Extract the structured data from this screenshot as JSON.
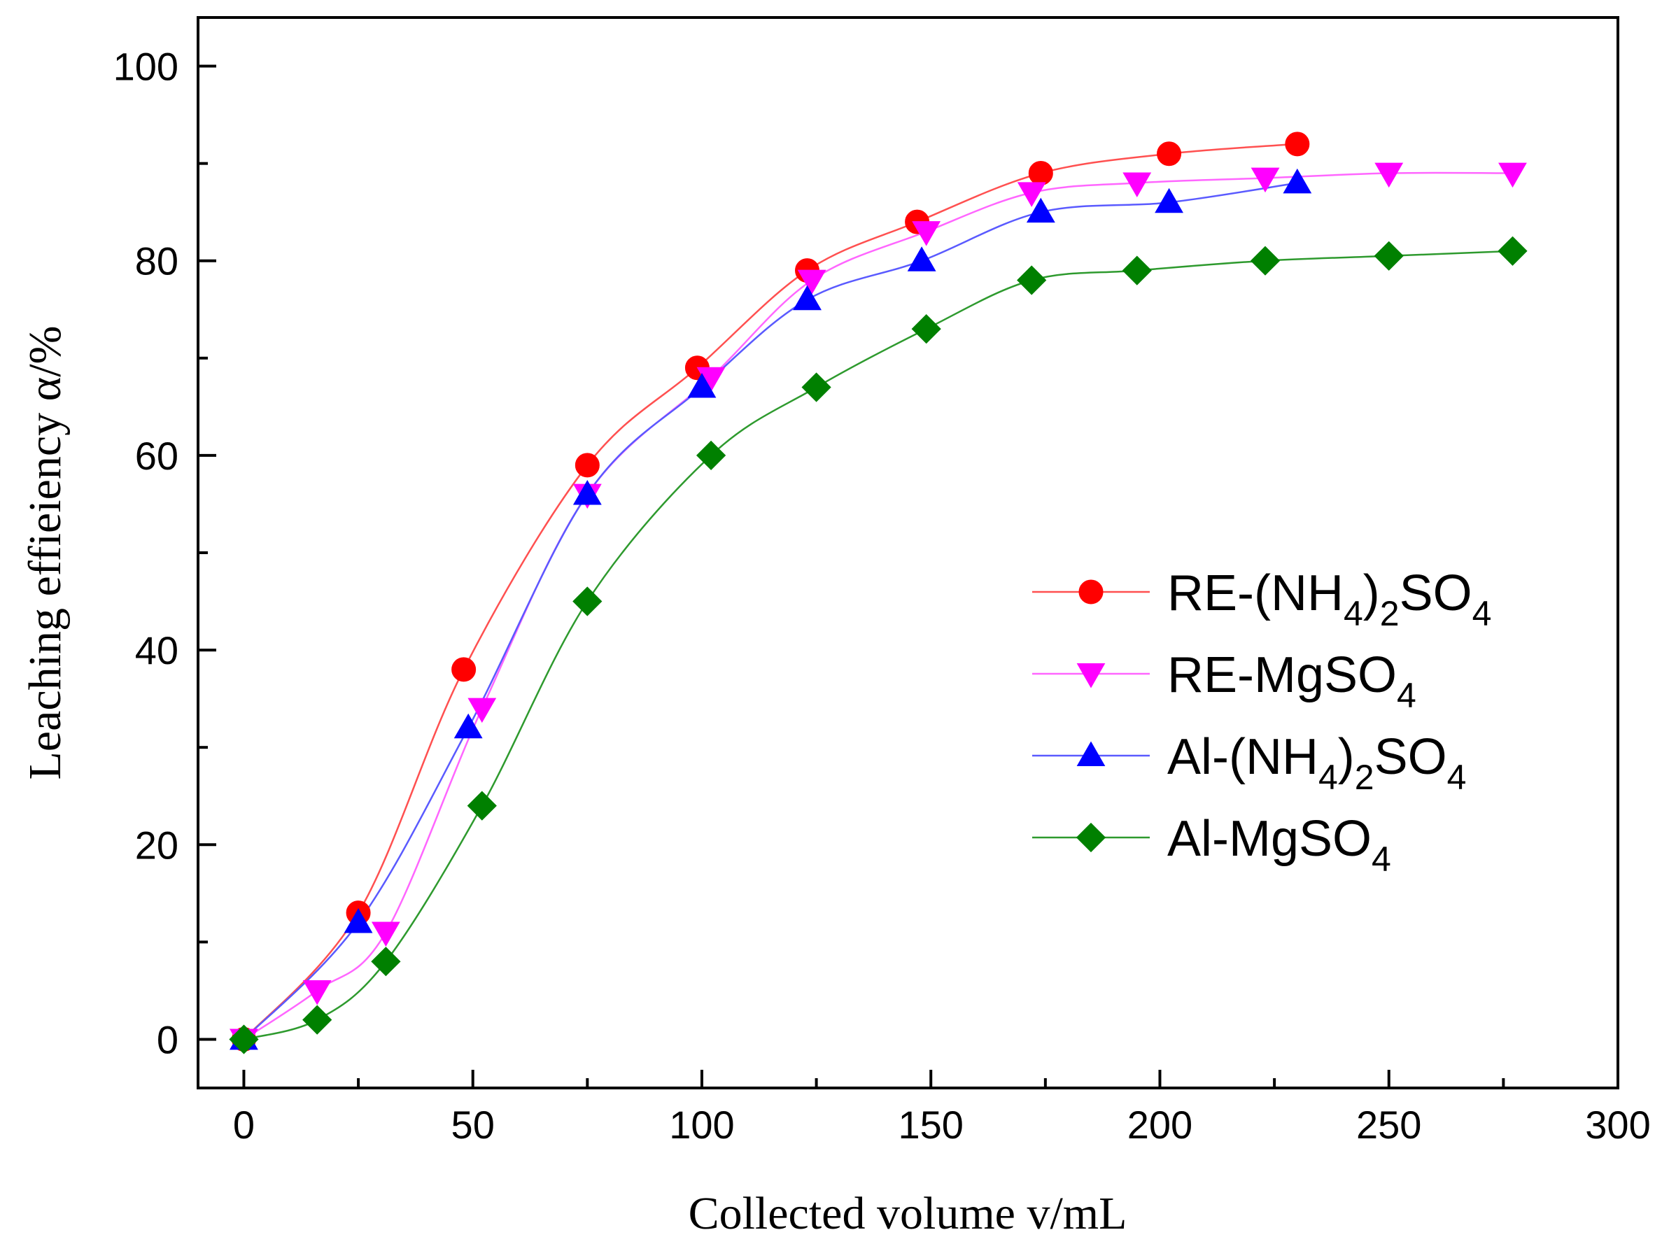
{
  "chart_data": {
    "type": "line",
    "title": "",
    "xlabel": "Collected volume v/mL",
    "ylabel": "Leaching effieiency α/%",
    "xlim": [
      -10,
      300
    ],
    "ylim": [
      -5,
      105
    ],
    "xticks": [
      0,
      50,
      100,
      150,
      200,
      250,
      300
    ],
    "yticks": [
      0,
      20,
      40,
      60,
      80,
      100
    ],
    "grid": false,
    "legend_position": "center-right",
    "series": [
      {
        "name": "RE-(NH4)2SO4",
        "label_parts": [
          [
            "RE-(NH",
            ""
          ],
          [
            "4",
            "sub"
          ],
          [
            ")",
            ""
          ],
          [
            "2",
            "sub"
          ],
          [
            "SO",
            ""
          ],
          [
            "4",
            "sub"
          ]
        ],
        "color": "#ff0000",
        "line_color": "#ff5050",
        "marker": "circle",
        "x": [
          0,
          25,
          48,
          75,
          99,
          123,
          147,
          174,
          202,
          230
        ],
        "y": [
          0,
          13,
          38,
          59,
          69,
          79,
          84,
          89,
          91,
          92
        ]
      },
      {
        "name": "RE-MgSO4",
        "label_parts": [
          [
            "RE-MgSO",
            ""
          ],
          [
            "4",
            "sub"
          ]
        ],
        "color": "#ff00ff",
        "line_color": "#ff66ff",
        "marker": "triangle-down",
        "x": [
          0,
          16,
          31,
          52,
          75,
          102,
          124,
          149,
          172,
          195,
          223,
          250,
          277
        ],
        "y": [
          0,
          5,
          11,
          34,
          56,
          68,
          78,
          83,
          87,
          88,
          88.5,
          89,
          89
        ]
      },
      {
        "name": "Al-(NH4)2SO4",
        "label_parts": [
          [
            "Al-(NH",
            ""
          ],
          [
            "4",
            "sub"
          ],
          [
            ")",
            ""
          ],
          [
            "2",
            "sub"
          ],
          [
            "SO",
            ""
          ],
          [
            "4",
            "sub"
          ]
        ],
        "color": "#0000ff",
        "line_color": "#5a5aff",
        "marker": "triangle-up",
        "x": [
          0,
          25,
          49,
          75,
          100,
          123,
          148,
          174,
          202,
          230
        ],
        "y": [
          0,
          12,
          32,
          56,
          67,
          76,
          80,
          85,
          86,
          88
        ]
      },
      {
        "name": "Al-MgSO4",
        "label_parts": [
          [
            "Al-MgSO",
            ""
          ],
          [
            "4",
            "sub"
          ]
        ],
        "color": "#008000",
        "line_color": "#2e9a2e",
        "marker": "diamond",
        "x": [
          0,
          16,
          31,
          52,
          75,
          102,
          125,
          149,
          172,
          195,
          223,
          250,
          277
        ],
        "y": [
          0,
          2,
          8,
          24,
          45,
          60,
          67,
          73,
          78,
          79,
          80,
          80.5,
          81
        ]
      }
    ]
  }
}
